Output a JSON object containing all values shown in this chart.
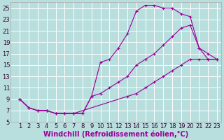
{
  "xlabel": "Windchill (Refroidissement éolien,°C)",
  "bg_color": "#b8dede",
  "grid_color": "#ffffff",
  "line_color": "#990099",
  "xlim": [
    0,
    23.5
  ],
  "ylim": [
    5,
    26
  ],
  "xticks": [
    1,
    2,
    3,
    4,
    5,
    6,
    7,
    8,
    9,
    10,
    11,
    12,
    13,
    14,
    15,
    16,
    17,
    18,
    19,
    20,
    21,
    22,
    23
  ],
  "yticks": [
    5,
    7,
    9,
    11,
    13,
    15,
    17,
    19,
    21,
    23,
    25
  ],
  "line1_x": [
    1,
    2,
    3,
    4,
    5,
    6,
    7,
    8,
    9,
    10,
    11,
    12,
    13,
    14,
    15,
    16,
    17,
    18,
    19,
    20,
    21,
    22,
    23
  ],
  "line1_y": [
    9,
    7.5,
    7,
    7,
    6.5,
    6.5,
    6.5,
    6.5,
    9.5,
    15.5,
    16,
    18,
    20.5,
    24.5,
    25.5,
    25.5,
    25,
    25,
    24,
    23.5,
    18,
    16,
    16
  ],
  "line2_x": [
    1,
    2,
    3,
    4,
    5,
    6,
    7,
    8,
    9,
    10,
    11,
    12,
    13,
    14,
    15,
    16,
    17,
    18,
    19,
    20,
    21,
    22,
    23
  ],
  "line2_y": [
    9,
    7.5,
    7,
    7,
    6.5,
    6.5,
    6.5,
    6.5,
    9.5,
    10,
    11,
    12,
    13,
    15,
    16,
    17,
    18.5,
    20,
    21.5,
    22,
    18,
    17,
    16
  ],
  "line3_x": [
    1,
    2,
    3,
    4,
    5,
    6,
    7,
    13,
    14,
    15,
    16,
    17,
    18,
    19,
    20,
    21,
    22,
    23
  ],
  "line3_y": [
    9,
    7.5,
    7,
    7,
    6.5,
    6.5,
    6.5,
    9.5,
    10,
    11,
    12,
    13,
    14,
    15,
    16,
    16,
    16,
    16
  ],
  "xlabel_fontsize": 7,
  "tick_fontsize": 6
}
